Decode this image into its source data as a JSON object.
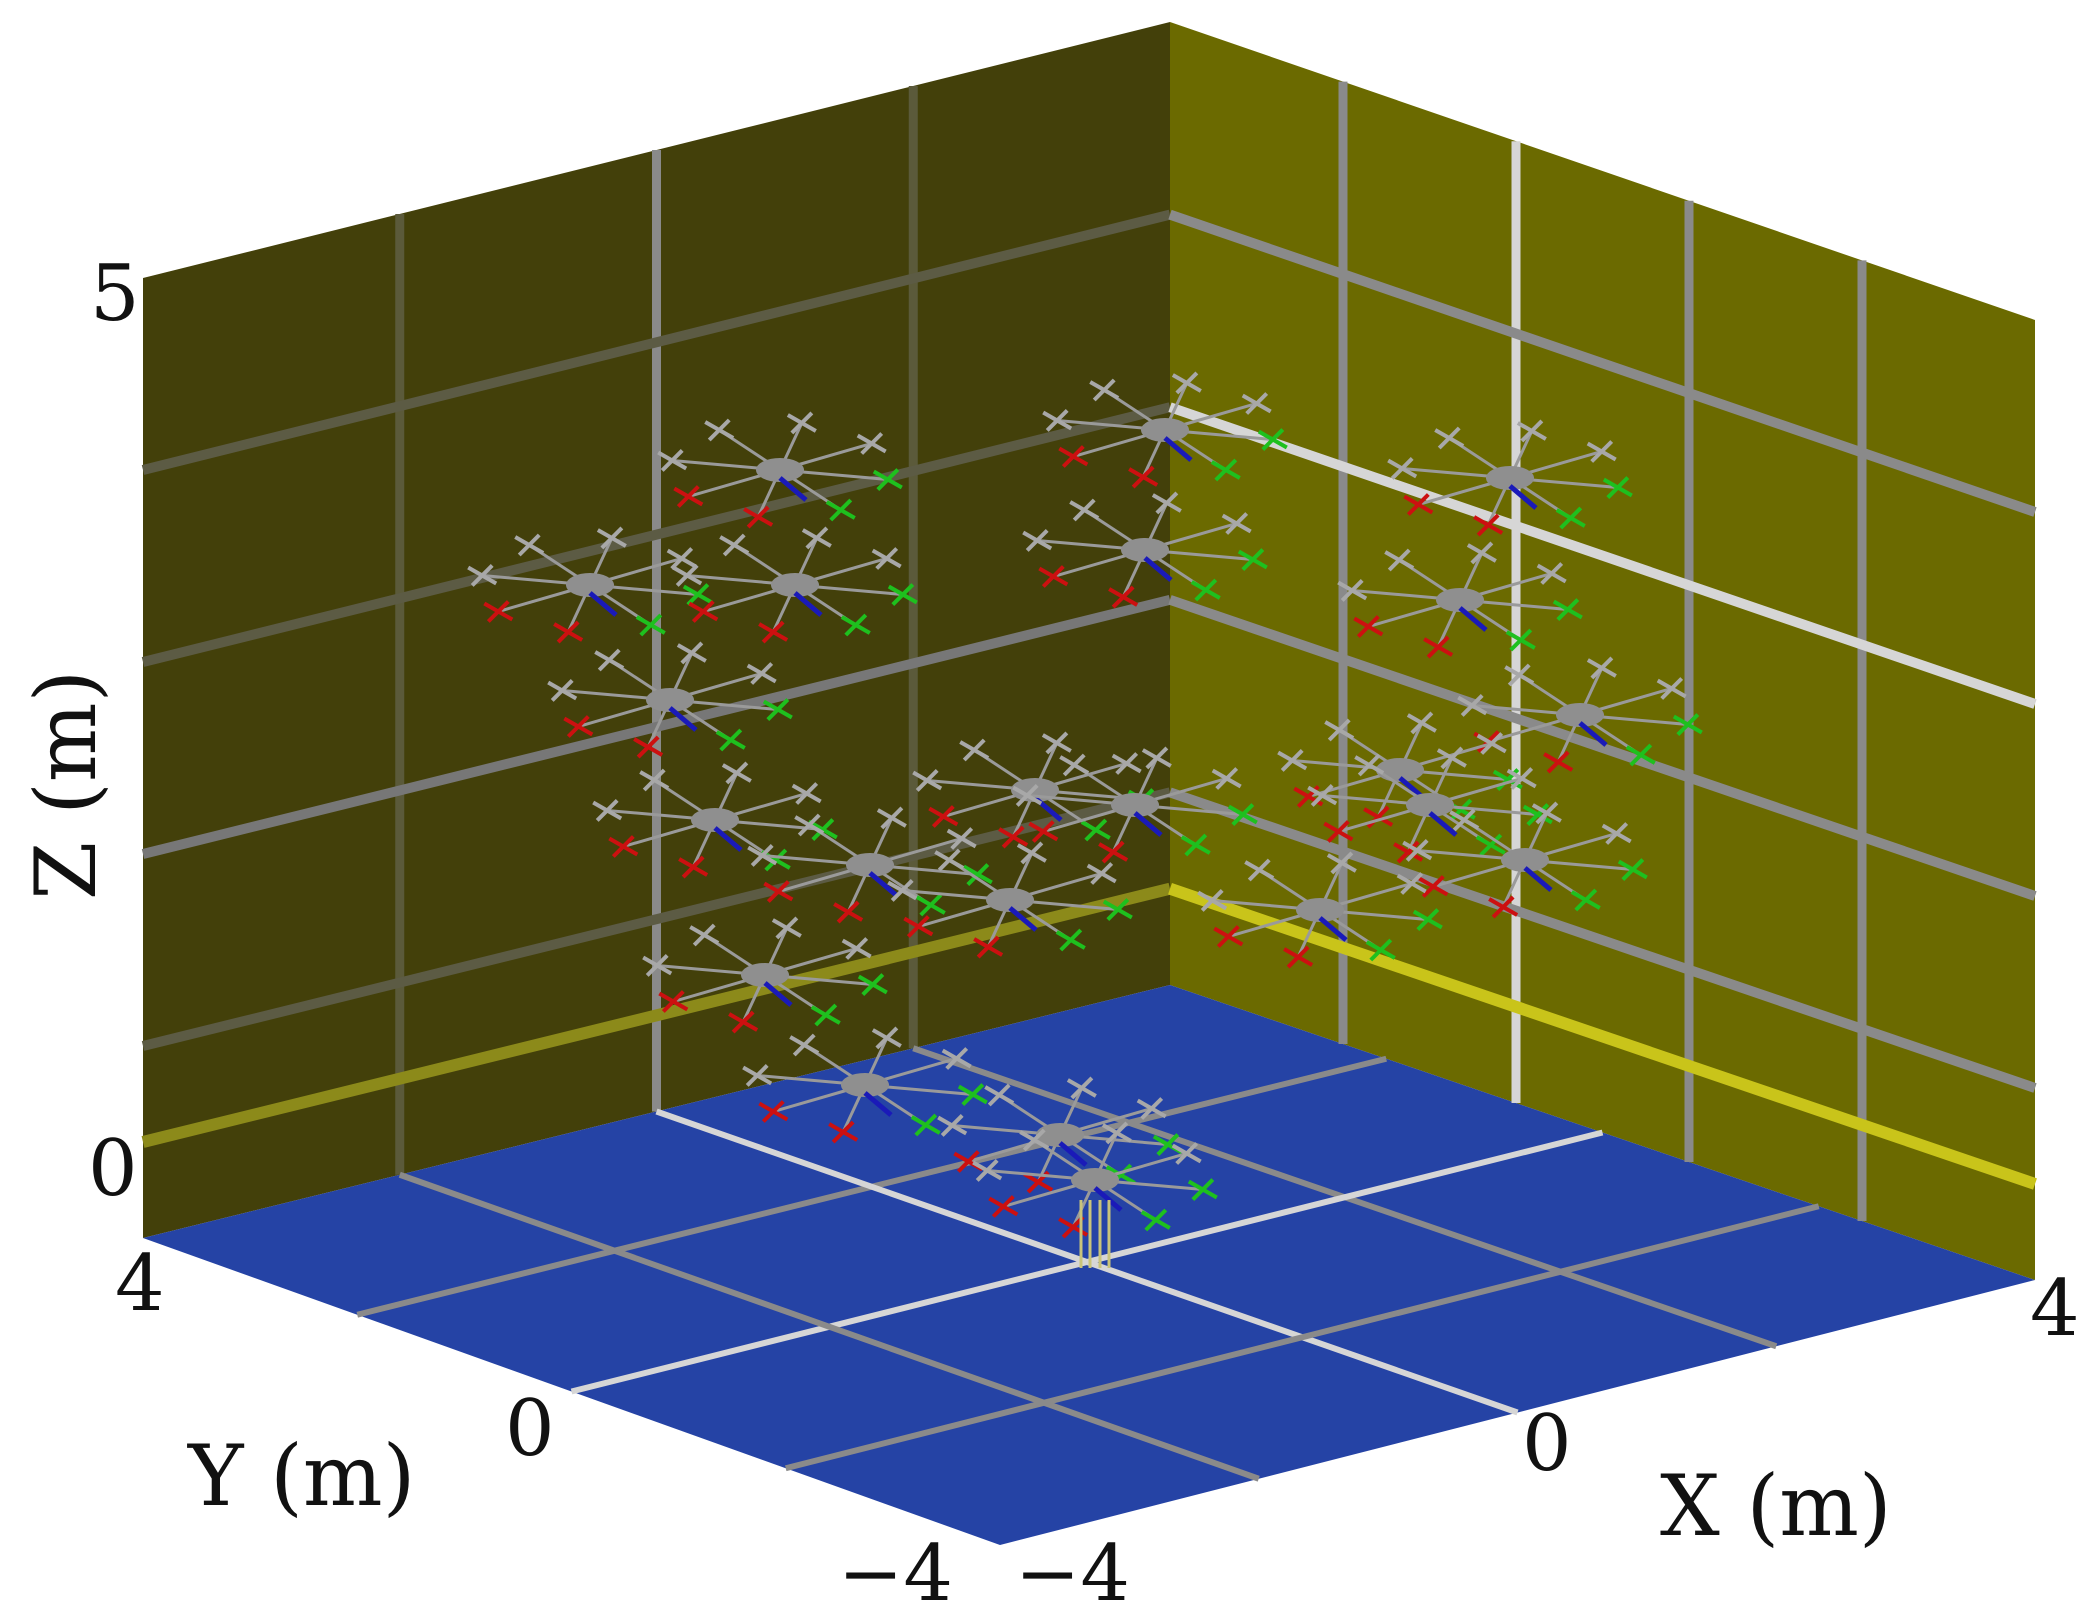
{
  "figure": {
    "axes": {
      "x": {
        "label": "X (m)",
        "ticks": [
          "−4",
          "0",
          "4"
        ],
        "range": [
          -4,
          4
        ]
      },
      "y": {
        "label": "Y (m)",
        "ticks": [
          "4",
          "0",
          "−4"
        ],
        "range": [
          -4,
          4
        ]
      },
      "z": {
        "label": "Z (m)",
        "ticks": [
          "5",
          "0"
        ],
        "range": [
          0,
          5
        ]
      }
    },
    "colors": {
      "floor": "#2543a5",
      "back_wall_left": "#43400a",
      "back_wall_right": "#6b6a00",
      "grid": "#7a7a7a",
      "highlight_line": "#d6d6d6",
      "yellow_line": "#c9c41a",
      "drone_body": "#a8a8a8",
      "rotor_front": "#1ec01e",
      "rotor_rear": "#cc1010",
      "heading": "#1a1ab8"
    },
    "drone_count": 21
  }
}
